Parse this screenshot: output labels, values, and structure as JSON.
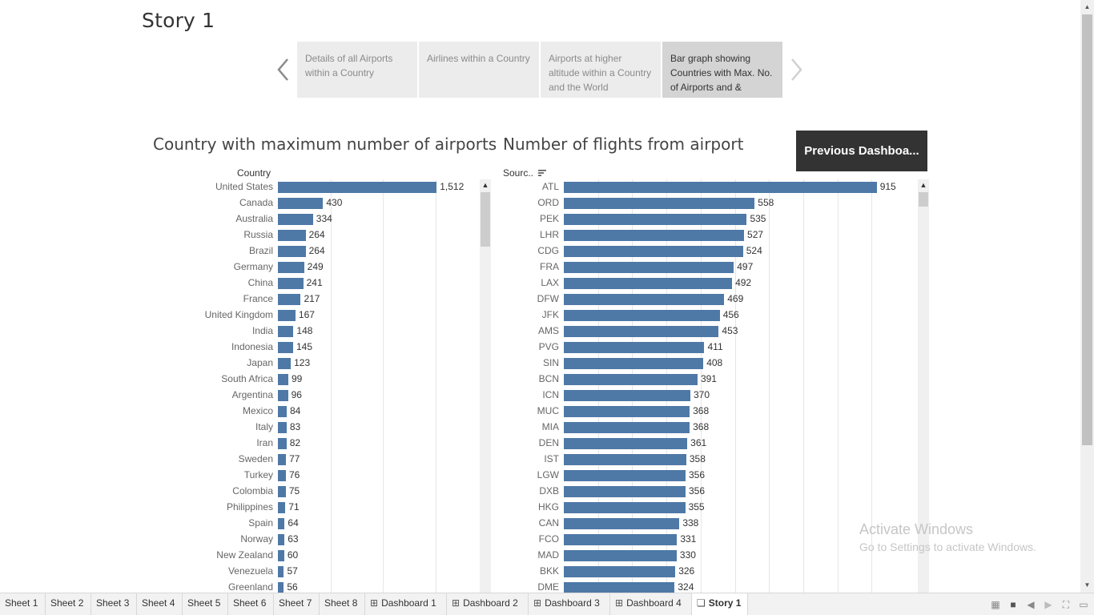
{
  "story": {
    "title": "Story 1",
    "points": [
      "Details of all Airports within a Country",
      "Airlines within a Country",
      "Airports at higher altitude within a Country and the World",
      "Bar graph showing Countries with Max. No. of Airports and &"
    ],
    "active_point": 3
  },
  "buttons": {
    "previous_dashboard": "Previous Dashboa..."
  },
  "left_chart": {
    "header": "Country",
    "chart_data": {
      "type": "bar",
      "title": "Country with maximum number of airports",
      "orientation": "horizontal",
      "categories": [
        "United States",
        "Canada",
        "Australia",
        "Russia",
        "Brazil",
        "Germany",
        "China",
        "France",
        "United Kingdom",
        "India",
        "Indonesia",
        "Japan",
        "South Africa",
        "Argentina",
        "Mexico",
        "Italy",
        "Iran",
        "Sweden",
        "Turkey",
        "Colombia",
        "Philippines",
        "Spain",
        "Norway",
        "New Zealand",
        "Venezuela",
        "Greenland"
      ],
      "values": [
        1512,
        430,
        334,
        264,
        264,
        249,
        241,
        217,
        167,
        148,
        145,
        123,
        99,
        96,
        84,
        83,
        82,
        77,
        76,
        75,
        71,
        64,
        63,
        60,
        57,
        56
      ],
      "value_labels": [
        "1,512",
        "430",
        "334",
        "264",
        "264",
        "249",
        "241",
        "217",
        "167",
        "148",
        "145",
        "123",
        "99",
        "96",
        "84",
        "83",
        "82",
        "77",
        "76",
        "75",
        "71",
        "64",
        "63",
        "60",
        "57",
        "56"
      ],
      "xlim": [
        0,
        1800
      ],
      "grid": true,
      "color": "#4e79a7"
    }
  },
  "right_chart": {
    "header": "Sourc..",
    "chart_data": {
      "type": "bar",
      "title": "Number of flights from airport",
      "orientation": "horizontal",
      "categories": [
        "ATL",
        "ORD",
        "PEK",
        "LHR",
        "CDG",
        "FRA",
        "LAX",
        "DFW",
        "JFK",
        "AMS",
        "PVG",
        "SIN",
        "BCN",
        "ICN",
        "MUC",
        "MIA",
        "DEN",
        "IST",
        "LGW",
        "DXB",
        "HKG",
        "CAN",
        "FCO",
        "MAD",
        "BKK",
        "DME"
      ],
      "values": [
        915,
        558,
        535,
        527,
        524,
        497,
        492,
        469,
        456,
        453,
        411,
        408,
        391,
        370,
        368,
        368,
        361,
        358,
        356,
        356,
        355,
        338,
        331,
        330,
        326,
        324
      ],
      "value_labels": [
        "915",
        "558",
        "535",
        "527",
        "524",
        "497",
        "492",
        "469",
        "456",
        "453",
        "411",
        "408",
        "391",
        "370",
        "368",
        "368",
        "361",
        "358",
        "356",
        "356",
        "355",
        "338",
        "331",
        "330",
        "326",
        "324"
      ],
      "xlim": [
        0,
        1000
      ],
      "grid": true,
      "color": "#4e79a7"
    }
  },
  "watermark": {
    "line1": "Activate Windows",
    "line2": "Go to Settings to activate Windows."
  },
  "tabs": [
    {
      "label": "Sheet 1",
      "kind": "sheet"
    },
    {
      "label": "Sheet 2",
      "kind": "sheet"
    },
    {
      "label": "Sheet 3",
      "kind": "sheet"
    },
    {
      "label": "Sheet 4",
      "kind": "sheet"
    },
    {
      "label": "Sheet 5",
      "kind": "sheet"
    },
    {
      "label": "Sheet 6",
      "kind": "sheet"
    },
    {
      "label": "Sheet 7",
      "kind": "sheet"
    },
    {
      "label": "Sheet 8",
      "kind": "sheet"
    },
    {
      "label": "Dashboard 1",
      "kind": "dashboard"
    },
    {
      "label": "Dashboard 2",
      "kind": "dashboard"
    },
    {
      "label": "Dashboard 3",
      "kind": "dashboard"
    },
    {
      "label": "Dashboard 4",
      "kind": "dashboard"
    },
    {
      "label": "Story 1",
      "kind": "story",
      "active": true
    }
  ]
}
